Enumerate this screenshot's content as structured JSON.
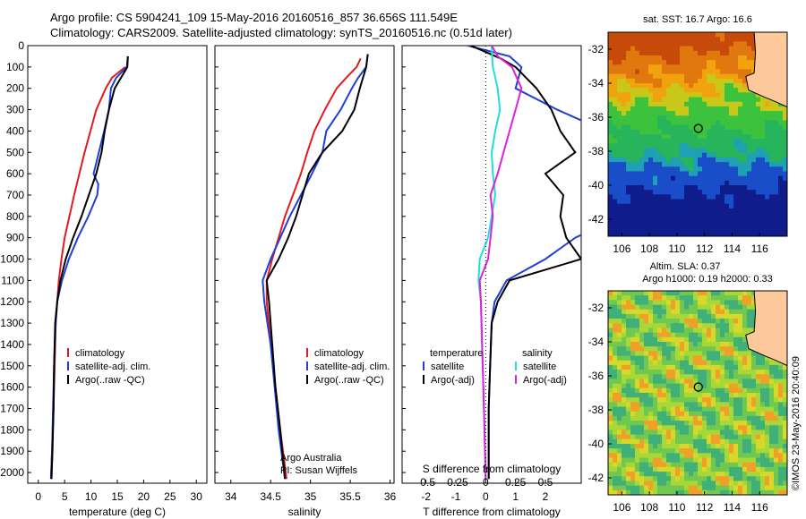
{
  "header": {
    "line1": "Argo profile: CS 5904241_109 15-May-2016 20160516_857 36.656S 111.549E",
    "line2": "Climatology: CARS2009. Satellite-adjusted climatology: synTS_20160516.nc (0.51d later)"
  },
  "side_note": "©IMOS 23-May-2016 20:40:09",
  "colors": {
    "climatology": "#e41a1c",
    "satellite": "#1f3fd6",
    "argo": "#000000",
    "sat_sal": "#22dddd",
    "argo_sal": "#dd22dd"
  },
  "chart_data": [
    {
      "type": "line",
      "name_id": "temperature-profile",
      "xlabel": "temperature (deg C)",
      "xticks": [
        0,
        5,
        10,
        15,
        20,
        25,
        30
      ],
      "xlim": [
        -2,
        32
      ],
      "yticks": [
        0,
        100,
        200,
        300,
        400,
        500,
        600,
        700,
        800,
        900,
        1000,
        1100,
        1200,
        1300,
        1400,
        1500,
        1600,
        1700,
        1800,
        1900,
        2000
      ],
      "ylim": [
        2050,
        0
      ],
      "legend": [
        "climatology",
        "satellite-adj. clim.",
        "Argo(..raw -QC)"
      ],
      "series": [
        {
          "key": "climatology",
          "depth": [
            100,
            150,
            200,
            300,
            400,
            500,
            600,
            700,
            800,
            900,
            1000,
            1100,
            1200,
            1300,
            1500,
            1700,
            1900,
            2030
          ],
          "values": [
            16.5,
            14.0,
            12.8,
            11.0,
            9.9,
            8.8,
            7.8,
            6.8,
            5.9,
            5.0,
            4.4,
            3.9,
            3.6,
            3.3,
            3.1,
            2.9,
            2.6,
            2.4
          ]
        },
        {
          "key": "satellite",
          "depth": [
            50,
            100,
            150,
            200,
            300,
            400,
            500,
            600,
            650,
            700,
            800,
            900,
            1000,
            1100,
            1200,
            1300,
            1500,
            1700,
            1900,
            2030
          ],
          "values": [
            17.0,
            16.8,
            14.8,
            13.8,
            13.4,
            12.5,
            11.5,
            10.5,
            11.4,
            11.2,
            9.5,
            7.5,
            5.8,
            4.5,
            3.6,
            3.3,
            3.0,
            2.8,
            2.6,
            2.4
          ]
        },
        {
          "key": "argo",
          "depth": [
            50,
            100,
            200,
            300,
            400,
            500,
            600,
            700,
            800,
            900,
            1000,
            1100,
            1200,
            1300,
            1500,
            1700,
            1900,
            2030
          ],
          "values": [
            17.0,
            16.9,
            14.5,
            13.4,
            12.6,
            12.0,
            11.0,
            9.6,
            8.2,
            6.6,
            5.2,
            4.2,
            3.6,
            3.2,
            3.0,
            2.9,
            2.7,
            2.5
          ]
        }
      ]
    },
    {
      "type": "line",
      "name_id": "salinity-profile",
      "xlabel": "salinity",
      "xticks": [
        34,
        34.5,
        35,
        35.5,
        36
      ],
      "xlim": [
        33.8,
        36.05
      ],
      "yticks": [
        0,
        100,
        200,
        300,
        400,
        500,
        600,
        700,
        800,
        900,
        1000,
        1100,
        1200,
        1300,
        1400,
        1500,
        1600,
        1700,
        1800,
        1900,
        2000
      ],
      "ylim": [
        2050,
        0
      ],
      "legend": [
        "climatology",
        "satellite-adj. clim.",
        "Argo(..raw -QC)"
      ],
      "annotation": [
        "Argo Australia",
        "PI: Susan Wijffels"
      ],
      "series": [
        {
          "key": "climatology",
          "depth": [
            60,
            100,
            150,
            200,
            300,
            400,
            500,
            600,
            700,
            800,
            900,
            1000,
            1100,
            1200,
            1400,
            1600,
            1800,
            2030
          ],
          "values": [
            35.63,
            35.58,
            35.45,
            35.33,
            35.18,
            35.05,
            34.96,
            34.88,
            34.78,
            34.68,
            34.6,
            34.52,
            34.45,
            34.45,
            34.5,
            34.56,
            34.62,
            34.7
          ]
        },
        {
          "key": "satellite",
          "depth": [
            40,
            100,
            150,
            200,
            300,
            400,
            500,
            600,
            700,
            800,
            900,
            1000,
            1100,
            1200,
            1400,
            1600,
            1800,
            2030
          ],
          "values": [
            35.72,
            35.7,
            35.6,
            35.52,
            35.38,
            35.2,
            35.15,
            35.02,
            34.88,
            34.74,
            34.62,
            34.5,
            34.4,
            34.42,
            34.5,
            34.55,
            34.6,
            34.68
          ]
        },
        {
          "key": "argo",
          "depth": [
            40,
            100,
            200,
            300,
            400,
            500,
            600,
            700,
            800,
            900,
            1000,
            1100,
            1200,
            1400,
            1600,
            1800,
            2030
          ],
          "values": [
            35.72,
            35.7,
            35.62,
            35.55,
            35.4,
            35.15,
            34.98,
            34.9,
            34.82,
            34.72,
            34.6,
            34.45,
            34.48,
            34.52,
            34.56,
            34.62,
            34.68
          ]
        }
      ]
    },
    {
      "type": "line",
      "name_id": "difference-profile",
      "xlabel": "T difference from climatology",
      "xlabel2": "S difference from climatology",
      "xticks": [
        -2,
        -1,
        0,
        1,
        2
      ],
      "xticks_top": [
        -0.5,
        -0.25,
        0,
        0.25,
        0.5
      ],
      "xlim": [
        -2.8,
        3.2
      ],
      "yticks": [
        0,
        100,
        200,
        300,
        400,
        500,
        600,
        700,
        800,
        900,
        1000,
        1100,
        1200,
        1300,
        1400,
        1500,
        1600,
        1700,
        1800,
        1900,
        2000
      ],
      "ylim": [
        2050,
        0
      ],
      "legend_titles": [
        "temperature",
        "salinity"
      ],
      "legend": [
        "satellite",
        "Argo(-adj)"
      ],
      "series": [
        {
          "key": "t_satellite",
          "depth": [
            0,
            50,
            100,
            200,
            300,
            400,
            500,
            600,
            700,
            800,
            900,
            1000,
            1100,
            1200,
            1300,
            1500,
            1700,
            1900,
            2030
          ],
          "values": [
            -0.6,
            0.8,
            1.2,
            1.0,
            2.4,
            4.0,
            4.5,
            5.0,
            5.0,
            4.5,
            3.0,
            2.0,
            0.7,
            0.3,
            0.2,
            0.15,
            0.1,
            0.1,
            0.1
          ]
        },
        {
          "key": "t_argo",
          "depth": [
            0,
            60,
            100,
            200,
            300,
            400,
            500,
            600,
            700,
            800,
            900,
            1000,
            1100,
            1200,
            1300,
            1500,
            1700,
            1900,
            2030
          ],
          "values": [
            -0.5,
            0.5,
            1.0,
            1.7,
            2.2,
            2.5,
            3.0,
            2.0,
            2.6,
            2.5,
            2.7,
            3.2,
            0.8,
            0.4,
            0.2,
            0.15,
            0.1,
            0.1,
            0.1
          ]
        },
        {
          "key": "s_satellite",
          "depth": [
            0,
            100,
            200,
            300,
            400,
            500,
            600,
            700,
            800,
            900,
            1000,
            1100,
            1200,
            1400,
            1600,
            1800,
            2030
          ],
          "values": [
            0.05,
            0.06,
            0.1,
            0.12,
            0.08,
            0.05,
            0.06,
            0.08,
            0.05,
            0.02,
            -0.05,
            -0.06,
            -0.04,
            -0.03,
            -0.02,
            -0.01,
            0.0
          ]
        },
        {
          "key": "s_argo",
          "depth": [
            0,
            50,
            100,
            200,
            300,
            400,
            500,
            600,
            700,
            800,
            900,
            1000,
            1100,
            1200,
            1400,
            1600,
            1800,
            2030
          ],
          "values": [
            0.05,
            0.1,
            0.22,
            0.3,
            0.25,
            0.2,
            0.15,
            0.1,
            0.04,
            0.06,
            0.04,
            0.02,
            -0.05,
            -0.04,
            -0.03,
            -0.02,
            -0.01,
            0.0
          ]
        }
      ]
    },
    {
      "type": "heatmap",
      "name_id": "sst-map",
      "title": "sat. SST: 16.7 Argo: 16.6",
      "xticks": [
        106,
        108,
        110,
        112,
        114,
        116
      ],
      "yticks": [
        -32,
        -34,
        -36,
        -38,
        -40,
        -42
      ],
      "xlim": [
        105,
        118
      ],
      "ylim": [
        -43,
        -31
      ],
      "marker": {
        "lon": 111.55,
        "lat": -36.66
      }
    },
    {
      "type": "heatmap",
      "name_id": "sla-map",
      "title": "Altim. SLA: 0.37",
      "subtitle": "Argo h1000: 0.19 h2000: 0.33",
      "xticks": [
        106,
        108,
        110,
        112,
        114,
        116
      ],
      "yticks": [
        -32,
        -34,
        -36,
        -38,
        -40,
        -42
      ],
      "xlim": [
        105,
        118
      ],
      "ylim": [
        -43,
        -31
      ],
      "marker": {
        "lon": 111.55,
        "lat": -36.66
      }
    }
  ]
}
